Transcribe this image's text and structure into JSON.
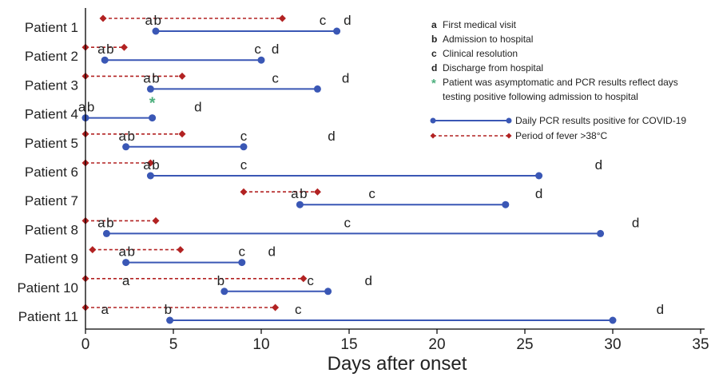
{
  "chart_data": {
    "type": "timeline",
    "xlabel": "Days after onset",
    "xlim": [
      0,
      35
    ],
    "xticks": [
      0,
      5,
      10,
      15,
      20,
      25,
      30,
      35
    ],
    "colors": {
      "pcr": "#3a57b5",
      "fever": "#b22222",
      "asymptomatic_marker": "#4caf7d"
    },
    "legend": {
      "placement": "top-right",
      "events": [
        {
          "key": "a",
          "text": "First medical visit"
        },
        {
          "key": "b",
          "text": "Admission to hospital"
        },
        {
          "key": "c",
          "text": "Clinical resolution"
        },
        {
          "key": "d",
          "text": "Discharge from hospital"
        }
      ],
      "asterisk_key": "*",
      "asterisk_text_1": "Patient was asymptomatic and PCR results reflect days",
      "asterisk_text_2": "testing positive following admission to hospital",
      "pcr_label": "Daily PCR results positive for COVID-19",
      "fever_label": "Period of fever >38°C"
    },
    "patients": [
      {
        "name": "Patient 1",
        "fever": [
          1,
          11.2
        ],
        "pcr": [
          4,
          14.3
        ],
        "labels": [
          {
            "t": "a",
            "x": 3.6
          },
          {
            "t": "b",
            "x": 4.1
          },
          {
            "t": "c",
            "x": 13.5
          },
          {
            "t": "d",
            "x": 14.9
          }
        ]
      },
      {
        "name": "Patient 2",
        "fever": [
          0,
          2.2
        ],
        "pcr": [
          1.1,
          10
        ],
        "labels": [
          {
            "t": "a",
            "x": 0.9
          },
          {
            "t": "b",
            "x": 1.4
          },
          {
            "t": "c",
            "x": 9.8
          },
          {
            "t": "d",
            "x": 10.8
          }
        ]
      },
      {
        "name": "Patient 3",
        "fever": [
          0,
          5.5
        ],
        "pcr": [
          3.7,
          13.2
        ],
        "labels": [
          {
            "t": "a",
            "x": 3.5
          },
          {
            "t": "b",
            "x": 4.0
          },
          {
            "t": "c",
            "x": 10.8
          },
          {
            "t": "d",
            "x": 14.8
          }
        ]
      },
      {
        "name": "Patient 4",
        "fever": null,
        "pcr": [
          0,
          3.8
        ],
        "asterisk_x": 3.8,
        "labels": [
          {
            "t": "a",
            "x": -0.2
          },
          {
            "t": "b",
            "x": 0.3
          },
          {
            "t": "d",
            "x": 6.4
          }
        ]
      },
      {
        "name": "Patient 5",
        "fever": [
          0,
          5.5
        ],
        "pcr": [
          2.3,
          9
        ],
        "labels": [
          {
            "t": "a",
            "x": 2.1
          },
          {
            "t": "b",
            "x": 2.6
          },
          {
            "t": "c",
            "x": 9.0
          },
          {
            "t": "d",
            "x": 14.0
          }
        ]
      },
      {
        "name": "Patient 6",
        "fever": [
          0,
          3.7
        ],
        "pcr": [
          3.7,
          25.8
        ],
        "labels": [
          {
            "t": "a",
            "x": 3.5
          },
          {
            "t": "b",
            "x": 4.0
          },
          {
            "t": "c",
            "x": 9.0
          },
          {
            "t": "d",
            "x": 29.2
          }
        ]
      },
      {
        "name": "Patient 7",
        "fever": [
          9,
          13.2
        ],
        "pcr": [
          12.2,
          23.9
        ],
        "labels": [
          {
            "t": "a",
            "x": 11.9
          },
          {
            "t": "b",
            "x": 12.4
          },
          {
            "t": "c",
            "x": 16.3
          },
          {
            "t": "d",
            "x": 25.8
          }
        ]
      },
      {
        "name": "Patient 8",
        "fever": [
          0,
          4
        ],
        "pcr": [
          1.2,
          29.3
        ],
        "labels": [
          {
            "t": "a",
            "x": 0.9
          },
          {
            "t": "b",
            "x": 1.4
          },
          {
            "t": "c",
            "x": 14.9
          },
          {
            "t": "d",
            "x": 31.3
          }
        ]
      },
      {
        "name": "Patient 9",
        "fever": [
          0.4,
          5.4
        ],
        "pcr": [
          2.3,
          8.9
        ],
        "labels": [
          {
            "t": "a",
            "x": 2.1
          },
          {
            "t": "b",
            "x": 2.6
          },
          {
            "t": "c",
            "x": 8.9
          },
          {
            "t": "d",
            "x": 10.6
          }
        ]
      },
      {
        "name": "Patient 10",
        "fever": [
          0,
          12.4
        ],
        "pcr": [
          7.9,
          13.8
        ],
        "labels": [
          {
            "t": "a",
            "x": 2.3
          },
          {
            "t": "b",
            "x": 7.7
          },
          {
            "t": "c",
            "x": 12.8
          },
          {
            "t": "d",
            "x": 16.1
          }
        ]
      },
      {
        "name": "Patient 11",
        "fever": [
          0,
          10.8
        ],
        "pcr": [
          4.8,
          30
        ],
        "labels": [
          {
            "t": "a",
            "x": 1.1
          },
          {
            "t": "b",
            "x": 4.7
          },
          {
            "t": "c",
            "x": 12.1
          },
          {
            "t": "d",
            "x": 32.7
          }
        ]
      }
    ]
  }
}
